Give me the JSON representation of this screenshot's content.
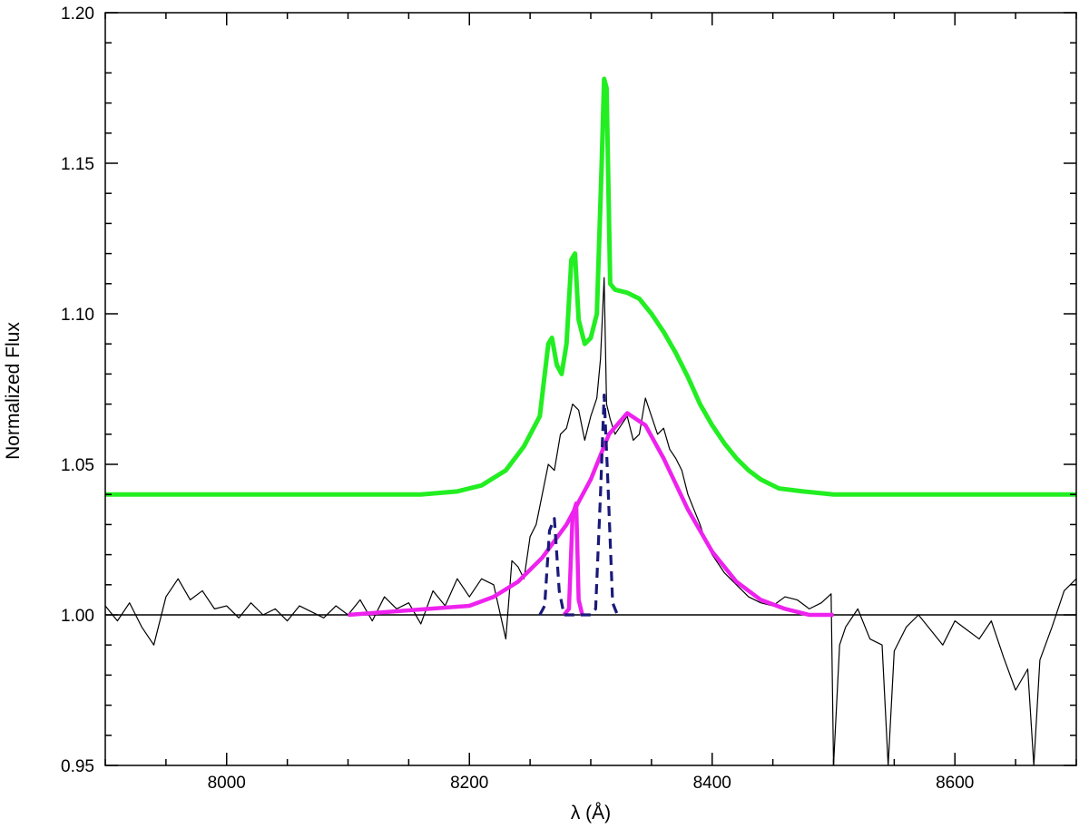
{
  "chart_data": {
    "type": "line",
    "title": "",
    "xlabel": "λ (Å)",
    "ylabel": "Normalized Flux",
    "xlim": [
      7900,
      8700
    ],
    "ylim": [
      0.95,
      1.2
    ],
    "grid": false,
    "legend": "none",
    "x_ticks": [
      8000,
      8200,
      8400,
      8600
    ],
    "x_tick_labels": [
      "8000",
      "8200",
      "8400",
      "8600"
    ],
    "y_ticks": [
      0.95,
      1.0,
      1.05,
      1.1,
      1.15,
      1.2
    ],
    "y_tick_labels": [
      "0.95",
      "1.00",
      "1.05",
      "1.10",
      "1.15",
      "1.20"
    ],
    "series": [
      {
        "role": "continuum",
        "color": "#000000",
        "style": "solid",
        "points": [
          [
            7900,
            1.0
          ],
          [
            8700,
            1.0
          ]
        ]
      },
      {
        "role": "observed-spectrum",
        "color": "#000000",
        "style": "solid",
        "points": [
          [
            7900,
            1.003
          ],
          [
            7910,
            0.998
          ],
          [
            7920,
            1.004
          ],
          [
            7930,
            0.996
          ],
          [
            7940,
            0.99
          ],
          [
            7950,
            1.006
          ],
          [
            7960,
            1.012
          ],
          [
            7970,
            1.005
          ],
          [
            7980,
            1.008
          ],
          [
            7990,
            1.002
          ],
          [
            8000,
            1.003
          ],
          [
            8010,
            0.999
          ],
          [
            8020,
            1.004
          ],
          [
            8030,
            1.0
          ],
          [
            8040,
            1.002
          ],
          [
            8050,
            0.998
          ],
          [
            8060,
            1.003
          ],
          [
            8070,
            1.001
          ],
          [
            8080,
            0.999
          ],
          [
            8090,
            1.003
          ],
          [
            8100,
            1.0
          ],
          [
            8110,
            1.005
          ],
          [
            8120,
            0.998
          ],
          [
            8130,
            1.006
          ],
          [
            8140,
            1.002
          ],
          [
            8150,
            1.004
          ],
          [
            8160,
            0.997
          ],
          [
            8170,
            1.008
          ],
          [
            8180,
            1.003
          ],
          [
            8190,
            1.012
          ],
          [
            8200,
            1.006
          ],
          [
            8210,
            1.012
          ],
          [
            8220,
            1.01
          ],
          [
            8230,
            0.992
          ],
          [
            8235,
            1.018
          ],
          [
            8240,
            1.016
          ],
          [
            8245,
            1.012
          ],
          [
            8250,
            1.026
          ],
          [
            8255,
            1.03
          ],
          [
            8260,
            1.04
          ],
          [
            8265,
            1.05
          ],
          [
            8270,
            1.048
          ],
          [
            8275,
            1.06
          ],
          [
            8280,
            1.062
          ],
          [
            8285,
            1.07
          ],
          [
            8290,
            1.068
          ],
          [
            8295,
            1.058
          ],
          [
            8300,
            1.066
          ],
          [
            8305,
            1.072
          ],
          [
            8308,
            1.085
          ],
          [
            8311,
            1.112
          ],
          [
            8313,
            1.07
          ],
          [
            8316,
            1.065
          ],
          [
            8320,
            1.06
          ],
          [
            8325,
            1.063
          ],
          [
            8330,
            1.066
          ],
          [
            8335,
            1.058
          ],
          [
            8340,
            1.06
          ],
          [
            8345,
            1.072
          ],
          [
            8350,
            1.066
          ],
          [
            8355,
            1.06
          ],
          [
            8360,
            1.062
          ],
          [
            8365,
            1.055
          ],
          [
            8370,
            1.052
          ],
          [
            8375,
            1.048
          ],
          [
            8380,
            1.04
          ],
          [
            8385,
            1.035
          ],
          [
            8390,
            1.03
          ],
          [
            8395,
            1.024
          ],
          [
            8400,
            1.02
          ],
          [
            8410,
            1.014
          ],
          [
            8420,
            1.01
          ],
          [
            8430,
            1.006
          ],
          [
            8440,
            1.004
          ],
          [
            8450,
            1.003
          ],
          [
            8460,
            1.006
          ],
          [
            8470,
            1.005
          ],
          [
            8480,
            1.002
          ],
          [
            8490,
            1.004
          ],
          [
            8498,
            1.007
          ],
          [
            8500,
            0.95
          ],
          [
            8505,
            0.99
          ],
          [
            8510,
            0.996
          ],
          [
            8520,
            1.002
          ],
          [
            8530,
            0.992
          ],
          [
            8540,
            0.99
          ],
          [
            8545,
            0.95
          ],
          [
            8550,
            0.988
          ],
          [
            8560,
            0.996
          ],
          [
            8570,
            1.0
          ],
          [
            8580,
            0.995
          ],
          [
            8590,
            0.99
          ],
          [
            8600,
            0.998
          ],
          [
            8610,
            0.995
          ],
          [
            8620,
            0.992
          ],
          [
            8630,
            0.998
          ],
          [
            8640,
            0.986
          ],
          [
            8650,
            0.975
          ],
          [
            8660,
            0.982
          ],
          [
            8665,
            0.95
          ],
          [
            8670,
            0.985
          ],
          [
            8680,
            0.996
          ],
          [
            8690,
            1.008
          ],
          [
            8700,
            1.012
          ]
        ]
      },
      {
        "role": "model-offset",
        "color": "#22ee22",
        "style": "solid",
        "points": [
          [
            7900,
            1.04
          ],
          [
            8160,
            1.04
          ],
          [
            8190,
            1.041
          ],
          [
            8210,
            1.043
          ],
          [
            8230,
            1.048
          ],
          [
            8245,
            1.056
          ],
          [
            8258,
            1.066
          ],
          [
            8265,
            1.09
          ],
          [
            8268,
            1.092
          ],
          [
            8272,
            1.083
          ],
          [
            8276,
            1.08
          ],
          [
            8280,
            1.09
          ],
          [
            8284,
            1.118
          ],
          [
            8287,
            1.12
          ],
          [
            8290,
            1.098
          ],
          [
            8295,
            1.09
          ],
          [
            8300,
            1.092
          ],
          [
            8305,
            1.1
          ],
          [
            8309,
            1.15
          ],
          [
            8311,
            1.178
          ],
          [
            8313,
            1.175
          ],
          [
            8316,
            1.11
          ],
          [
            8320,
            1.108
          ],
          [
            8330,
            1.107
          ],
          [
            8340,
            1.105
          ],
          [
            8350,
            1.1
          ],
          [
            8360,
            1.094
          ],
          [
            8370,
            1.087
          ],
          [
            8380,
            1.079
          ],
          [
            8390,
            1.07
          ],
          [
            8400,
            1.063
          ],
          [
            8410,
            1.057
          ],
          [
            8420,
            1.052
          ],
          [
            8430,
            1.048
          ],
          [
            8440,
            1.045
          ],
          [
            8455,
            1.042
          ],
          [
            8475,
            1.041
          ],
          [
            8500,
            1.04
          ],
          [
            8700,
            1.04
          ]
        ]
      },
      {
        "role": "broad-gaussian",
        "color": "#ee22ee",
        "style": "solid",
        "points": [
          [
            8100,
            1.0
          ],
          [
            8200,
            1.003
          ],
          [
            8220,
            1.006
          ],
          [
            8240,
            1.011
          ],
          [
            8260,
            1.019
          ],
          [
            8280,
            1.03
          ],
          [
            8300,
            1.045
          ],
          [
            8315,
            1.06
          ],
          [
            8330,
            1.067
          ],
          [
            8345,
            1.063
          ],
          [
            8360,
            1.052
          ],
          [
            8380,
            1.035
          ],
          [
            8400,
            1.021
          ],
          [
            8420,
            1.011
          ],
          [
            8440,
            1.005
          ],
          [
            8460,
            1.002
          ],
          [
            8480,
            1.0
          ],
          [
            8500,
            1.0
          ]
        ]
      },
      {
        "role": "narrow-line",
        "color": "#ee22ee",
        "style": "solid",
        "points": [
          [
            8278,
            1.0
          ],
          [
            8282,
            1.002
          ],
          [
            8285,
            1.033
          ],
          [
            8288,
            1.037
          ],
          [
            8290,
            1.005
          ],
          [
            8293,
            1.0
          ]
        ]
      },
      {
        "role": "narrow-lines-dashed",
        "color": "#1a1a7a",
        "style": "dashed",
        "points": [
          [
            8258,
            1.0
          ],
          [
            8262,
            1.003
          ],
          [
            8266,
            1.028
          ],
          [
            8270,
            1.032
          ],
          [
            8274,
            1.008
          ],
          [
            8278,
            1.0
          ],
          [
            8300,
            1.0
          ],
          [
            8304,
            1.002
          ],
          [
            8308,
            1.04
          ],
          [
            8311,
            1.073
          ],
          [
            8314,
            1.045
          ],
          [
            8318,
            1.004
          ],
          [
            8322,
            1.0
          ]
        ]
      }
    ]
  }
}
